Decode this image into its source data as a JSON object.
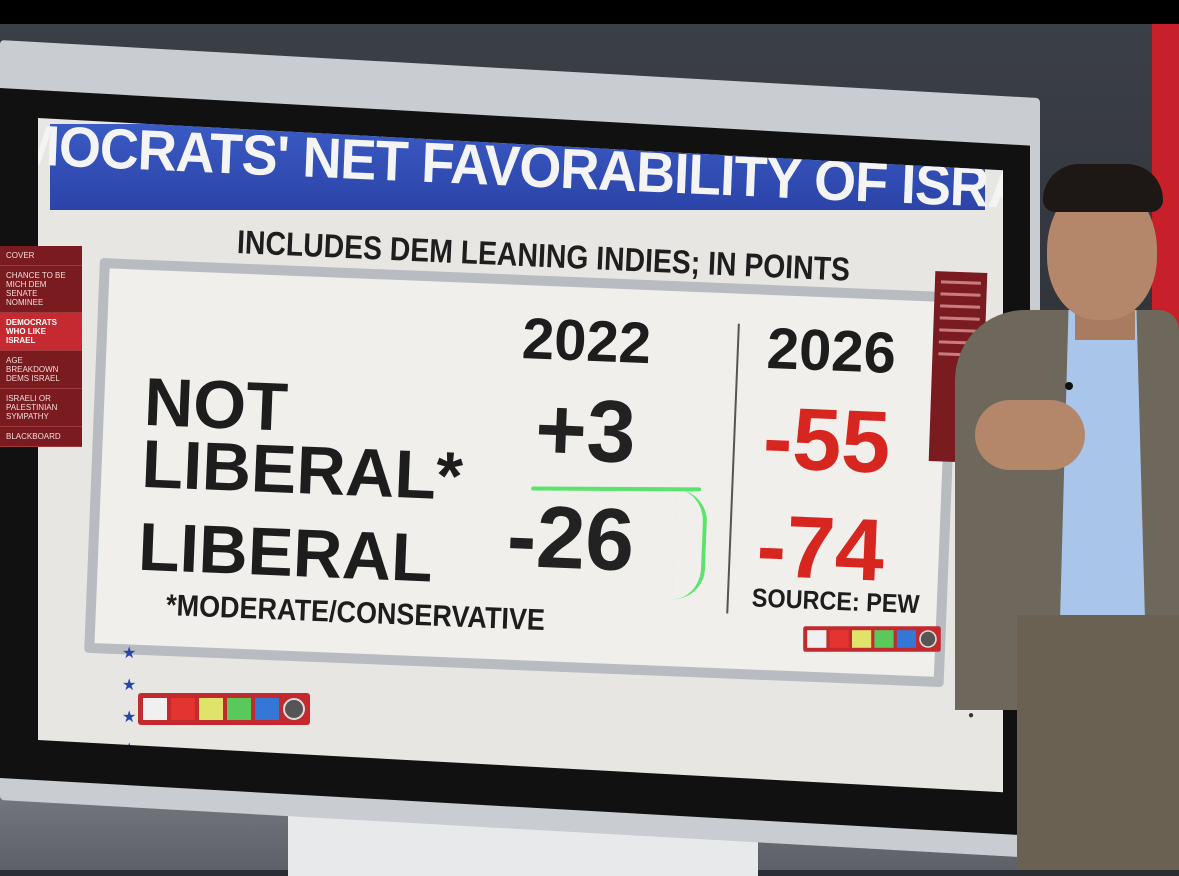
{
  "graphic": {
    "title": "DEMOCRATS' NET FAVORABILITY OF ISRAEL",
    "subtitle": "INCLUDES DEM LEANING INDIES; IN POINTS",
    "years": [
      "2022",
      "2026"
    ],
    "rows": [
      {
        "label": "NOT LIBERAL*",
        "label_line1": "NOT",
        "label_line2": "LIBERAL*",
        "v2022": "+3",
        "v2026": "-55"
      },
      {
        "label": "LIBERAL",
        "v2022": "-26",
        "v2026": "-74"
      }
    ],
    "footnote": "*MODERATE/CONSERVATIVE",
    "source": "SOURCE: PEW",
    "colors": {
      "banner": "#2b44a8",
      "negative": "#d6261f",
      "annotation": "#5be36b",
      "menu": "#7a1b1f"
    }
  },
  "side_menu": {
    "items": [
      {
        "label": "COVER"
      },
      {
        "label": "CHANCE TO BE MICH DEM SENATE NOMINEE"
      },
      {
        "label": "DEMOCRATS WHO LIKE ISRAEL",
        "active": true
      },
      {
        "label": "AGE BREAKDOWN DEMS ISRAEL"
      },
      {
        "label": "ISRAELI OR PALESTINIAN SYMPATHY"
      },
      {
        "label": "BLACKBOARD"
      }
    ]
  }
}
